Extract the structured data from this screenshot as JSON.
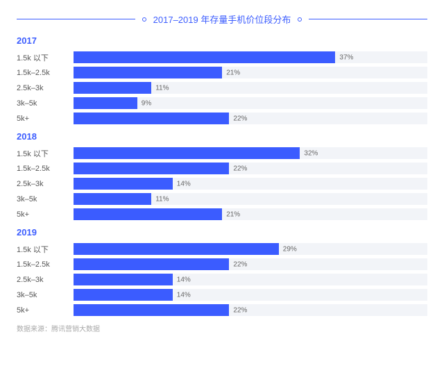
{
  "title": "2017–2019 年存量手机价位段分布",
  "title_color": "#3b5cff",
  "accent_color": "#3b5cff",
  "track_color": "#f2f4f8",
  "bar_color": "#3b5cff",
  "value_color": "#666666",
  "category_color": "#555555",
  "source_label": "数据来源：腾讯营销大数据",
  "bar_max_percent": 50,
  "groups": [
    {
      "year": "2017",
      "rows": [
        {
          "category": "1.5k 以下",
          "value": 37,
          "label": "37%"
        },
        {
          "category": "1.5k–2.5k",
          "value": 21,
          "label": "21%"
        },
        {
          "category": "2.5k–3k",
          "value": 11,
          "label": "11%"
        },
        {
          "category": "3k–5k",
          "value": 9,
          "label": "9%"
        },
        {
          "category": "5k+",
          "value": 22,
          "label": "22%"
        }
      ]
    },
    {
      "year": "2018",
      "rows": [
        {
          "category": "1.5k 以下",
          "value": 32,
          "label": "32%"
        },
        {
          "category": "1.5k–2.5k",
          "value": 22,
          "label": "22%"
        },
        {
          "category": "2.5k–3k",
          "value": 14,
          "label": "14%"
        },
        {
          "category": "3k–5k",
          "value": 11,
          "label": "11%"
        },
        {
          "category": "5k+",
          "value": 21,
          "label": "21%"
        }
      ]
    },
    {
      "year": "2019",
      "rows": [
        {
          "category": "1.5k 以下",
          "value": 29,
          "label": "29%"
        },
        {
          "category": "1.5k–2.5k",
          "value": 22,
          "label": "22%"
        },
        {
          "category": "2.5k–3k",
          "value": 14,
          "label": "14%"
        },
        {
          "category": "3k–5k",
          "value": 14,
          "label": "14%"
        },
        {
          "category": "5k+",
          "value": 22,
          "label": "22%"
        }
      ]
    }
  ]
}
